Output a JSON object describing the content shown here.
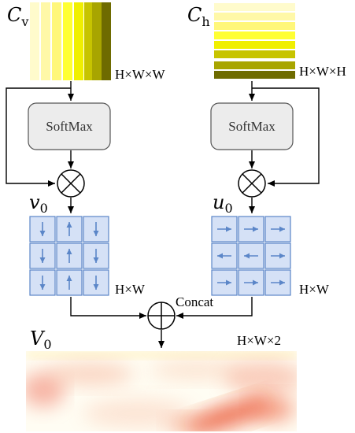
{
  "labels": {
    "cv_base": "C",
    "cv_sub": "v",
    "ch_base": "C",
    "ch_sub": "h",
    "cv_dim": "H×W×W",
    "ch_dim": "H×W×H",
    "softmax_left": "SoftMax",
    "softmax_right": "SoftMax",
    "v0_base": "v",
    "v0_sub": "0",
    "u0_base": "u",
    "u0_sub": "0",
    "v0_dim": "H×W",
    "u0_dim": "H×W",
    "concat": "Concat",
    "V0_base": "V",
    "V0_sub": "0",
    "V0_dim": "H×W×2"
  },
  "colors": {
    "stripes": [
      "#fffbcc",
      "#fff8a8",
      "#fff77a",
      "#ffff33",
      "#f0ef00",
      "#c7c400",
      "#a8a500",
      "#6e6b00"
    ],
    "grid_fill": "#d5e1f6",
    "grid_stroke": "#5b86c8",
    "arrow_blue": "#5b86c8",
    "softmax_fill": "#ececec",
    "softmax_stroke": "#555555"
  },
  "v0_grid": [
    [
      "down",
      "up",
      "down"
    ],
    [
      "down",
      "up",
      "down"
    ],
    [
      "down",
      "up",
      "down"
    ]
  ],
  "u0_grid": [
    [
      "right",
      "right",
      "right"
    ],
    [
      "left",
      "left",
      "right"
    ],
    [
      "right",
      "right",
      "right"
    ]
  ]
}
